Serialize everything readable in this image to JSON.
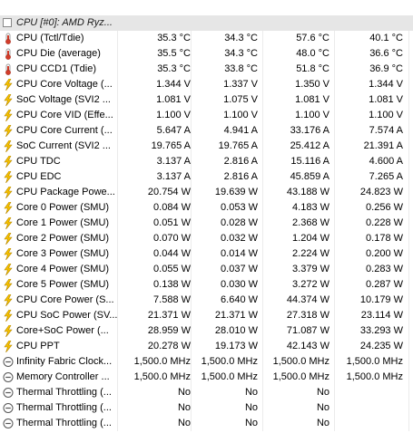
{
  "group": {
    "label": "CPU [#0]: AMD Ryz..."
  },
  "rows": [
    {
      "label": "CPU (Tctl/Tdie)",
      "icon": "thermometer-icon",
      "values": [
        "35.3 °C",
        "34.3 °C",
        "57.6 °C",
        "40.1 °C"
      ]
    },
    {
      "label": "CPU Die (average)",
      "icon": "thermometer-icon",
      "values": [
        "35.5 °C",
        "34.3 °C",
        "48.0 °C",
        "36.6 °C"
      ]
    },
    {
      "label": "CPU CCD1 (Tdie)",
      "icon": "thermometer-icon",
      "values": [
        "35.3 °C",
        "33.8 °C",
        "51.8 °C",
        "36.9 °C"
      ]
    },
    {
      "label": "CPU Core Voltage (...",
      "icon": "lightning-icon",
      "values": [
        "1.344 V",
        "1.337 V",
        "1.350 V",
        "1.344 V"
      ]
    },
    {
      "label": "SoC Voltage (SVI2 ...",
      "icon": "lightning-icon",
      "values": [
        "1.081 V",
        "1.075 V",
        "1.081 V",
        "1.081 V"
      ]
    },
    {
      "label": "CPU Core VID (Effe...",
      "icon": "lightning-icon",
      "values": [
        "1.100 V",
        "1.100 V",
        "1.100 V",
        "1.100 V"
      ]
    },
    {
      "label": "CPU Core Current (...",
      "icon": "lightning-icon",
      "values": [
        "5.647 A",
        "4.941 A",
        "33.176 A",
        "7.574 A"
      ]
    },
    {
      "label": "SoC Current (SVI2 ...",
      "icon": "lightning-icon",
      "values": [
        "19.765 A",
        "19.765 A",
        "25.412 A",
        "21.391 A"
      ]
    },
    {
      "label": "CPU TDC",
      "icon": "lightning-icon",
      "values": [
        "3.137 A",
        "2.816 A",
        "15.116 A",
        "4.600 A"
      ]
    },
    {
      "label": "CPU EDC",
      "icon": "lightning-icon",
      "values": [
        "3.137 A",
        "2.816 A",
        "45.859 A",
        "7.265 A"
      ]
    },
    {
      "label": "CPU Package Powe...",
      "icon": "lightning-icon",
      "values": [
        "20.754 W",
        "19.639 W",
        "43.188 W",
        "24.823 W"
      ]
    },
    {
      "label": "Core 0 Power (SMU)",
      "icon": "lightning-icon",
      "values": [
        "0.084 W",
        "0.053 W",
        "4.183 W",
        "0.256 W"
      ]
    },
    {
      "label": "Core 1 Power (SMU)",
      "icon": "lightning-icon",
      "values": [
        "0.051 W",
        "0.028 W",
        "2.368 W",
        "0.228 W"
      ]
    },
    {
      "label": "Core 2 Power (SMU)",
      "icon": "lightning-icon",
      "values": [
        "0.070 W",
        "0.032 W",
        "1.204 W",
        "0.178 W"
      ]
    },
    {
      "label": "Core 3 Power (SMU)",
      "icon": "lightning-icon",
      "values": [
        "0.044 W",
        "0.014 W",
        "2.224 W",
        "0.200 W"
      ]
    },
    {
      "label": "Core 4 Power (SMU)",
      "icon": "lightning-icon",
      "values": [
        "0.055 W",
        "0.037 W",
        "3.379 W",
        "0.283 W"
      ]
    },
    {
      "label": "Core 5 Power (SMU)",
      "icon": "lightning-icon",
      "values": [
        "0.138 W",
        "0.030 W",
        "3.272 W",
        "0.287 W"
      ]
    },
    {
      "label": "CPU Core Power (S...",
      "icon": "lightning-icon",
      "values": [
        "7.588 W",
        "6.640 W",
        "44.374 W",
        "10.179 W"
      ]
    },
    {
      "label": "CPU SoC Power (SV...",
      "icon": "lightning-icon",
      "values": [
        "21.371 W",
        "21.371 W",
        "27.318 W",
        "23.114 W"
      ]
    },
    {
      "label": "Core+SoC Power (...",
      "icon": "lightning-icon",
      "values": [
        "28.959 W",
        "28.010 W",
        "71.087 W",
        "33.293 W"
      ]
    },
    {
      "label": "CPU PPT",
      "icon": "lightning-icon",
      "values": [
        "20.278 W",
        "19.173 W",
        "42.143 W",
        "24.235 W"
      ]
    },
    {
      "label": "Infinity Fabric Clock...",
      "icon": "clock-icon",
      "values": [
        "1,500.0 MHz",
        "1,500.0 MHz",
        "1,500.0 MHz",
        "1,500.0 MHz"
      ]
    },
    {
      "label": "Memory Controller ...",
      "icon": "clock-icon",
      "values": [
        "1,500.0 MHz",
        "1,500.0 MHz",
        "1,500.0 MHz",
        "1,500.0 MHz"
      ]
    },
    {
      "label": "Thermal Throttling (...",
      "icon": "status-icon",
      "values": [
        "No",
        "No",
        "No",
        ""
      ]
    },
    {
      "label": "Thermal Throttling (...",
      "icon": "status-icon",
      "values": [
        "No",
        "No",
        "No",
        ""
      ]
    },
    {
      "label": "Thermal Throttling (...",
      "icon": "status-icon",
      "values": [
        "No",
        "No",
        "No",
        ""
      ]
    }
  ],
  "colors": {
    "thermometer": "#d23c2a",
    "lightning": "#f0b400",
    "clock": "#606060",
    "grid": "#ebebeb",
    "group_bg": "#e6e6e6"
  }
}
